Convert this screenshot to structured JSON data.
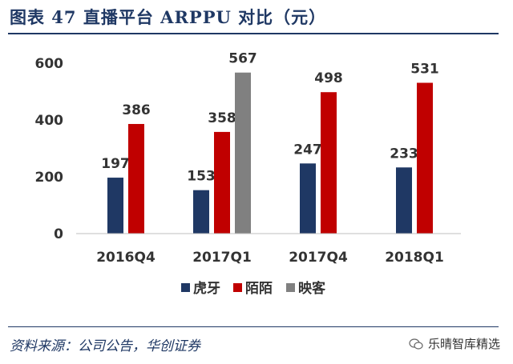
{
  "header": {
    "title": "图表 47   直播平台 ARPPU 对比（元）"
  },
  "chart_data": {
    "type": "bar",
    "categories": [
      "2016Q4",
      "2017Q1",
      "2017Q4",
      "2018Q1"
    ],
    "series": [
      {
        "name": "虎牙",
        "color": "#1f3864",
        "values": [
          197,
          153,
          247,
          233
        ]
      },
      {
        "name": "陌陌",
        "color": "#c00000",
        "values": [
          386,
          358,
          498,
          531
        ]
      },
      {
        "name": "映客",
        "color": "#808080",
        "values": [
          null,
          567,
          null,
          null
        ]
      }
    ],
    "yticks": [
      0,
      200,
      400,
      600
    ],
    "ylim": [
      0,
      600
    ],
    "grid": false,
    "legend_position": "bottom"
  },
  "footer": {
    "source": "资料来源：公司公告，华创证券",
    "watermark": "乐晴智库精选"
  }
}
